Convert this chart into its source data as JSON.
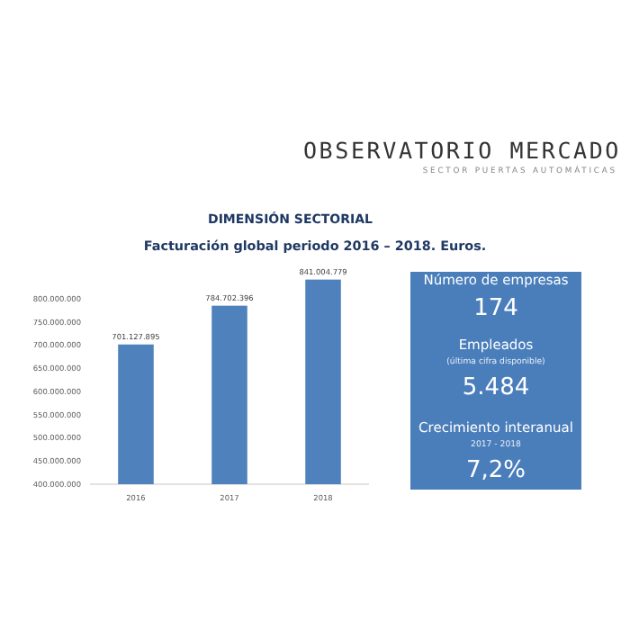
{
  "chart_data": [
    {
      "type": "bar",
      "title": "Facturación global periodo 2016 – 2018. Euros.",
      "annotations": [
        "OBSERVATORIO MERCADO",
        "SECTOR PUERTAS AUTOMÁTICAS",
        "DIMENSIÓN SECTORIAL"
      ],
      "categories": [
        "2016",
        "2017",
        "2018"
      ],
      "values": [
        701127895,
        784702396,
        841004779
      ],
      "color": "#4f81bd",
      "value_labels": [
        "701.127.895",
        "784.702.396",
        "841.004.779"
      ],
      "ylim": [
        400000000,
        850000000
      ],
      "yticks": [
        {
          "value": 400000000,
          "label": "400.000.000"
        },
        {
          "value": 450000000,
          "label": "450.000.000"
        },
        {
          "value": 500000000,
          "label": "500.000.000"
        },
        {
          "value": 550000000,
          "label": "550.000.000"
        },
        {
          "value": 600000000,
          "label": "600.000.000"
        },
        {
          "value": 650000000,
          "label": "650.000.000"
        },
        {
          "value": 700000000,
          "label": "700.000.000"
        },
        {
          "value": 750000000,
          "label": "750.000.000"
        },
        {
          "value": 800000000,
          "label": "800.000.000"
        }
      ]
    },
    {
      "type": "other",
      "color": "#4a7ebb",
      "annotations": [
        "Número de empresas",
        "174",
        "Empleados",
        "(última cifra disponible)",
        "5.484",
        "Crecimiento interanual",
        "2017 - 2018",
        "7,2%"
      ]
    }
  ]
}
